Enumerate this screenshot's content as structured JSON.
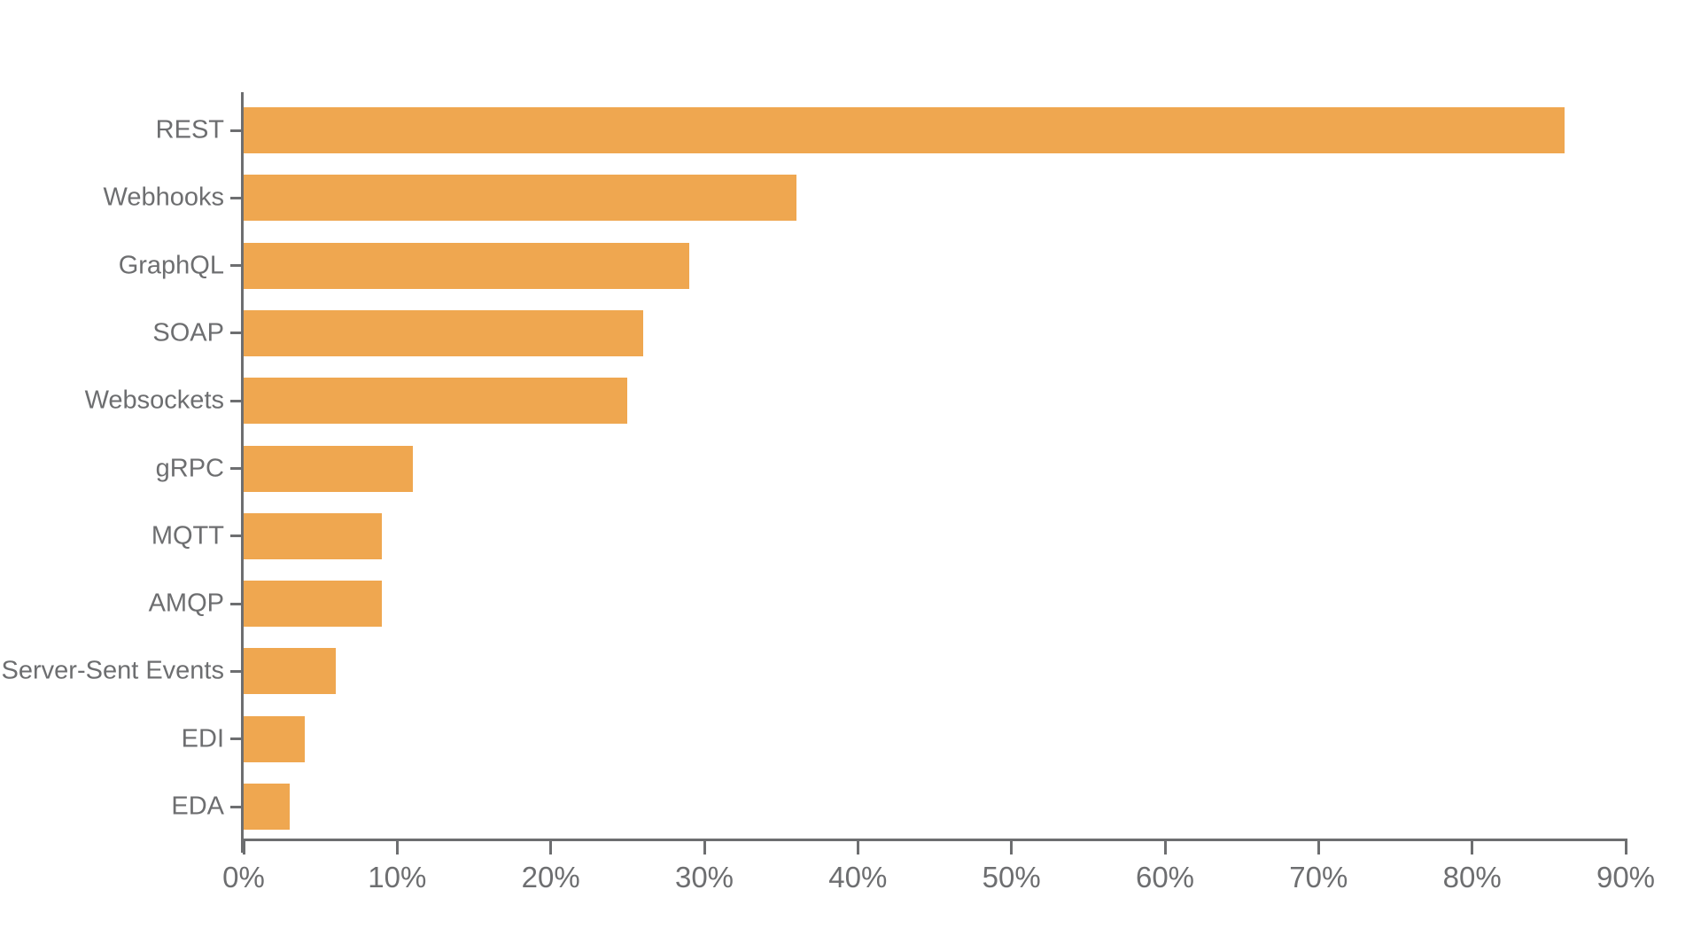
{
  "chart_data": {
    "type": "bar",
    "orientation": "horizontal",
    "title": "",
    "xlabel": "",
    "ylabel": "",
    "categories": [
      "REST",
      "Webhooks",
      "GraphQL",
      "SOAP",
      "Websockets",
      "gRPC",
      "MQTT",
      "AMQP",
      "Server-Sent Events",
      "EDI",
      "EDA"
    ],
    "values": [
      86,
      36,
      29,
      26,
      25,
      11,
      9,
      9,
      6,
      4,
      3
    ],
    "value_unit": "%",
    "xlim": [
      0,
      90
    ],
    "x_ticks": [
      {
        "value": 0,
        "label": "0%"
      },
      {
        "value": 10,
        "label": "10%"
      },
      {
        "value": 20,
        "label": "20%"
      },
      {
        "value": 30,
        "label": "30%"
      },
      {
        "value": 40,
        "label": "40%"
      },
      {
        "value": 50,
        "label": "50%"
      },
      {
        "value": 60,
        "label": "60%"
      },
      {
        "value": 70,
        "label": "70%"
      },
      {
        "value": 80,
        "label": "80%"
      },
      {
        "value": 90,
        "label": "90%"
      }
    ],
    "grid": false,
    "legend": null,
    "colors": {
      "bar": "#efa750",
      "axis": "#6d6e70",
      "category_label": "#6d6e70",
      "tick_label": "#6d6e70",
      "background": "#ffffff"
    }
  }
}
